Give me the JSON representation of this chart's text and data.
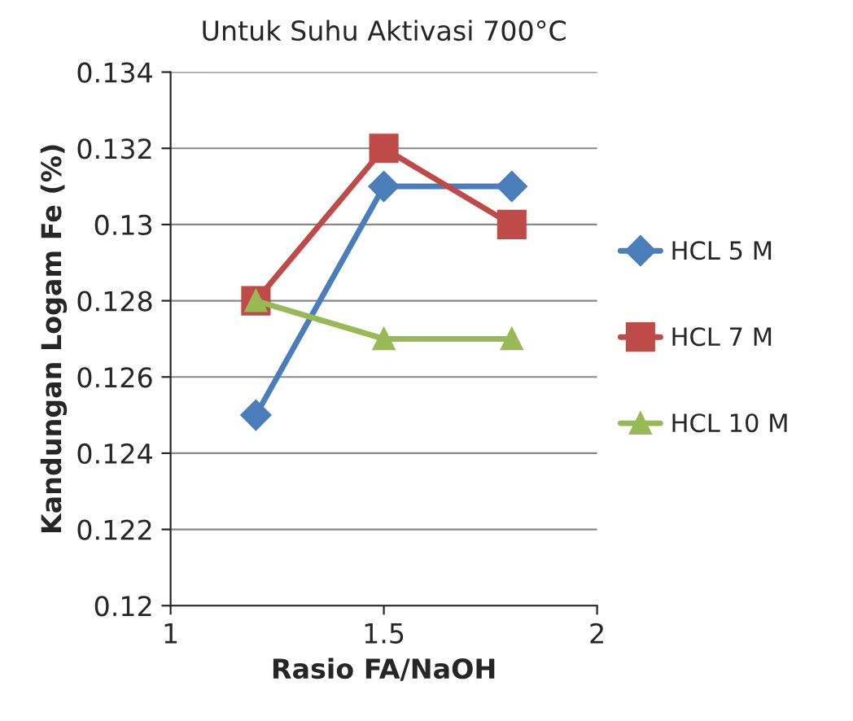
{
  "chart_data": {
    "type": "line",
    "title": "Untuk Suhu Aktivasi 700°C",
    "xlabel": "Rasio FA/NaOH",
    "ylabel": "Kandungan Logam Fe (%)",
    "x": [
      1.2,
      1.5,
      1.8
    ],
    "series": [
      {
        "name": "HCL 5 M",
        "color": "#4a7ebb",
        "marker": "diamond",
        "values": [
          0.125,
          0.131,
          0.131
        ]
      },
      {
        "name": "HCL 7 M",
        "color": "#be4b48",
        "marker": "square",
        "values": [
          0.128,
          0.132,
          0.13
        ]
      },
      {
        "name": "HCL 10 M",
        "color": "#98b954",
        "marker": "triangle",
        "values": [
          0.128,
          0.127,
          0.127
        ]
      }
    ],
    "xlim": [
      1,
      2
    ],
    "xticks": [
      1,
      1.5,
      2
    ],
    "ylim": [
      0.12,
      0.134
    ],
    "yticks": [
      0.12,
      0.122,
      0.124,
      0.126,
      0.128,
      0.13,
      0.132,
      0.134
    ],
    "grid": "y",
    "legend": "right"
  }
}
